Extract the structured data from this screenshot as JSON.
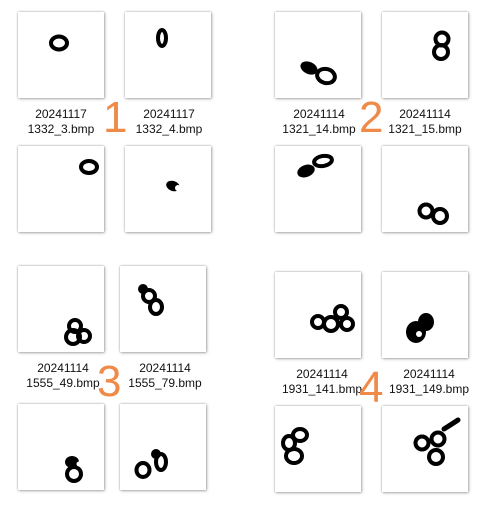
{
  "groups": [
    {
      "number": "1",
      "files": [
        {
          "date": "20241117",
          "name": "1332_3.bmp"
        },
        {
          "date": "20241117",
          "name": "1332_4.bmp"
        }
      ]
    },
    {
      "number": "2",
      "files": [
        {
          "date": "20241114",
          "name": "1321_14.bmp"
        },
        {
          "date": "20241114",
          "name": "1321_15.bmp"
        }
      ]
    },
    {
      "number": "3",
      "files": [
        {
          "date": "20241114",
          "name": "1555_49.bmp"
        },
        {
          "date": "20241114",
          "name": "1555_79.bmp"
        }
      ]
    },
    {
      "number": "4",
      "files": [
        {
          "date": "20241114",
          "name": "1931_141.bmp"
        },
        {
          "date": "20241114",
          "name": "1931_149.bmp"
        }
      ]
    }
  ],
  "colors": {
    "group_number": "#F08A48",
    "blob": "#000000"
  }
}
